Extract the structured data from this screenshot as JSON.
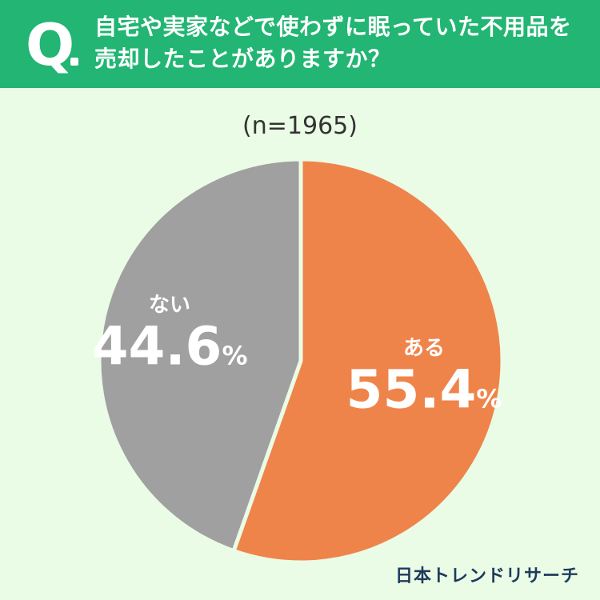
{
  "question": {
    "mark": "Q",
    "line1": "自宅や実家などで使わずに眠っていた不用品を",
    "line2": "売却したことがありますか？"
  },
  "sample_label": "(n=1965)",
  "brand": "日本トレンドリサーチ",
  "chart_data": {
    "type": "pie",
    "categories": [
      "ある",
      "ない"
    ],
    "values": [
      55.4,
      44.6
    ],
    "value_labels": [
      "55.4",
      "44.6"
    ],
    "unit": "%",
    "colors": [
      "#ef844a",
      "#a0a0a0"
    ]
  }
}
